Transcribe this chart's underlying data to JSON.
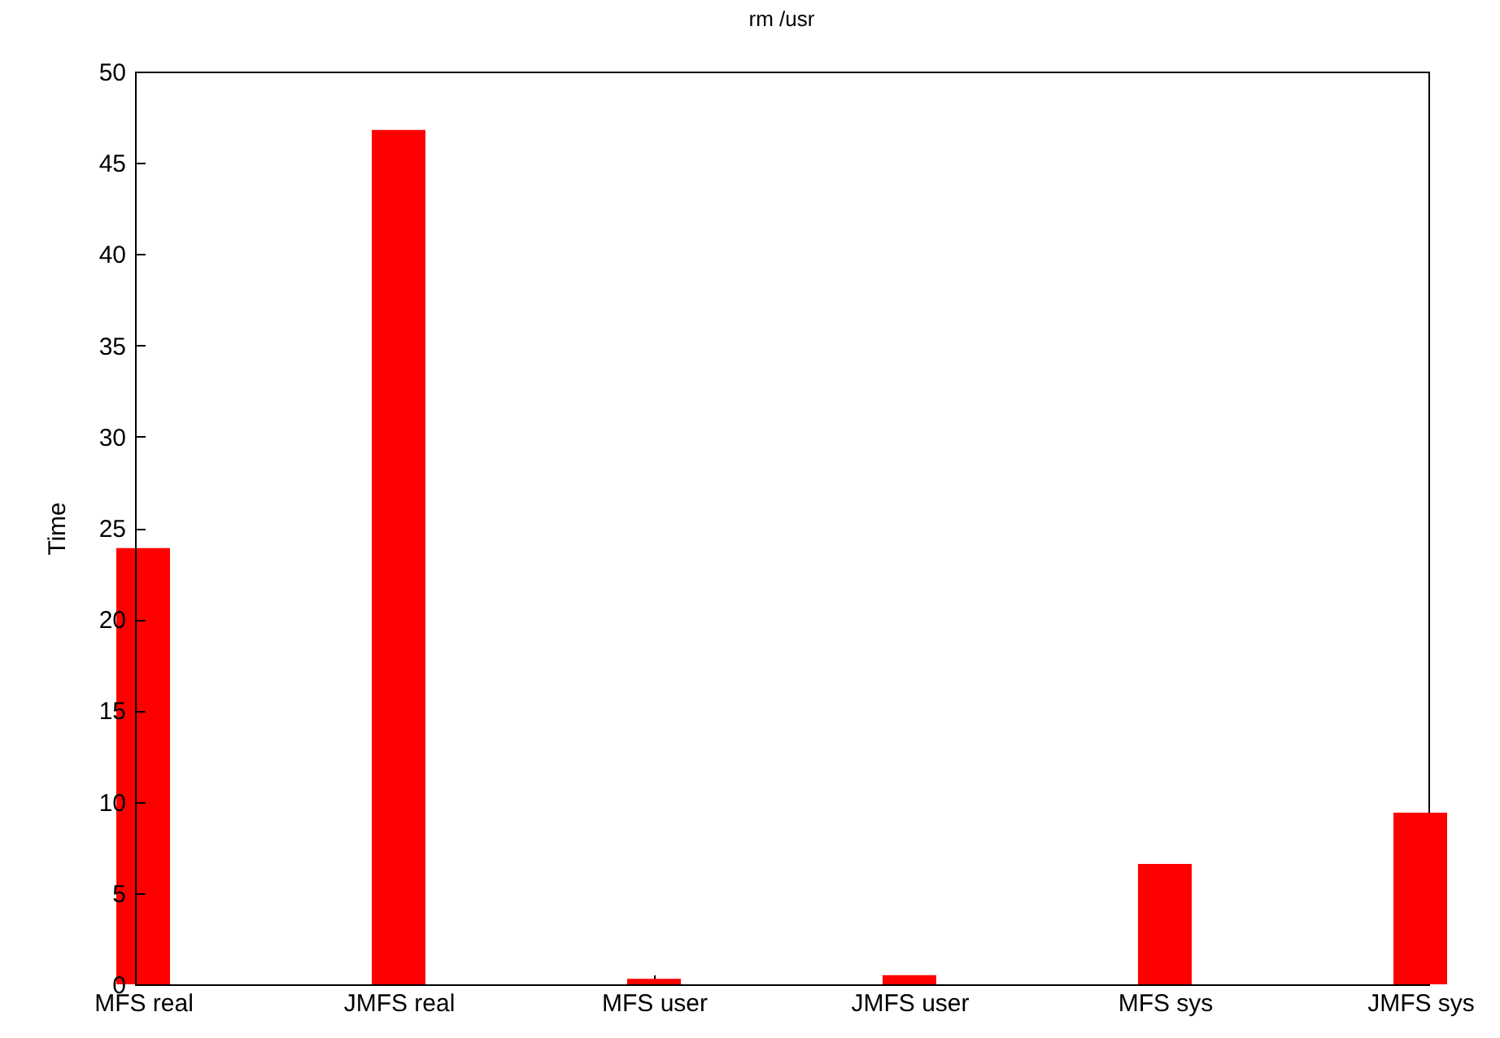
{
  "chart_data": {
    "type": "bar",
    "title": "rm /usr",
    "ylabel": "Time",
    "categories": [
      "MFS real",
      "JMFS real",
      "MFS user",
      "JMFS user",
      "MFS sys",
      "JMFS sys"
    ],
    "values": [
      23.9,
      46.8,
      0.3,
      0.5,
      6.6,
      9.4
    ],
    "color": "#ff0000",
    "ylim": [
      0,
      50
    ],
    "yticks": [
      0,
      5,
      10,
      15,
      20,
      25,
      30,
      35,
      40,
      45,
      50
    ],
    "grid": false
  }
}
